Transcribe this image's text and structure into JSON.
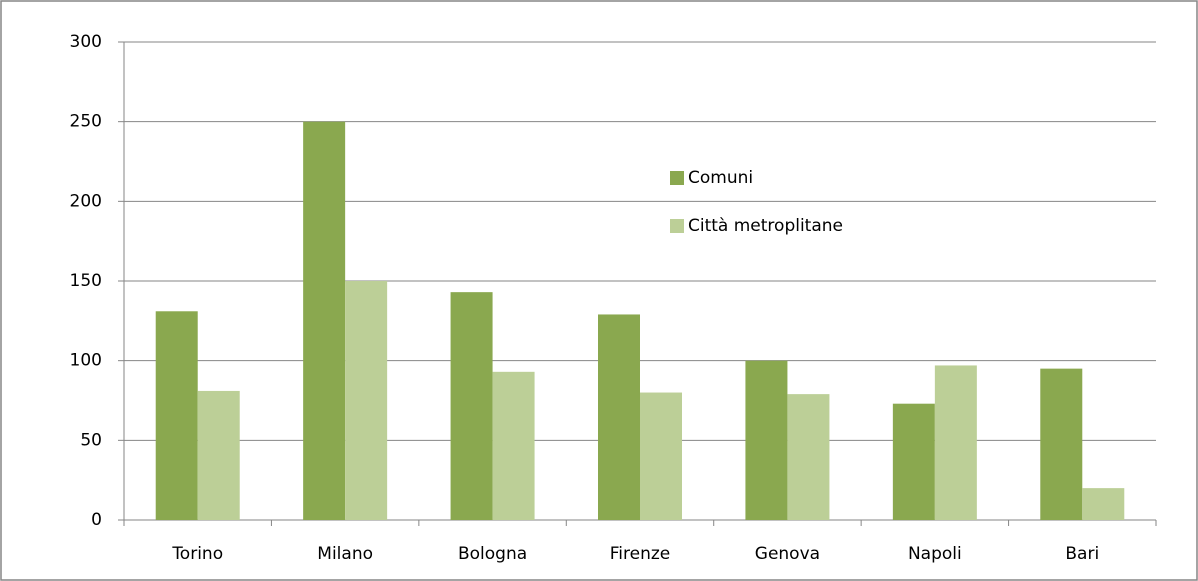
{
  "chart_data": {
    "type": "bar",
    "categories": [
      "Torino",
      "Milano",
      "Bologna",
      "Firenze",
      "Genova",
      "Napoli",
      "Bari"
    ],
    "series": [
      {
        "name": "Comuni",
        "color": "#8aa84f",
        "values": [
          131,
          250,
          143,
          129,
          100,
          73,
          95
        ]
      },
      {
        "name": "Città metroplitane",
        "color": "#bccf97",
        "values": [
          81,
          150,
          93,
          80,
          79,
          97,
          20
        ]
      }
    ],
    "ylim": [
      0,
      300
    ],
    "yticks": [
      0,
      50,
      100,
      150,
      200,
      250,
      300
    ],
    "grid": true
  }
}
